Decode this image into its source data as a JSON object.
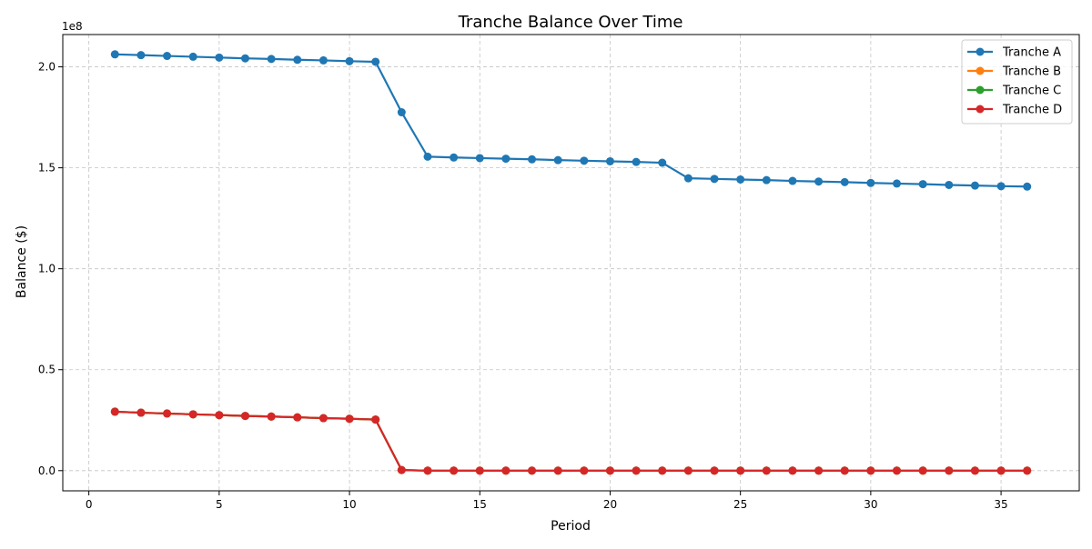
{
  "chart_data": {
    "type": "line",
    "title": "Tranche Balance Over Time",
    "xlabel": "Period",
    "ylabel": "Balance ($)",
    "y_offset_label": "1e8",
    "xlim": [
      -1,
      38
    ],
    "ylim": [
      -10000000,
      216000000
    ],
    "x_ticks": [
      0,
      5,
      10,
      15,
      20,
      25,
      30,
      35
    ],
    "y_ticks": [
      0,
      50000000,
      100000000,
      150000000,
      200000000
    ],
    "y_tick_labels": [
      "0.0",
      "0.5",
      "1.0",
      "1.5",
      "2.0"
    ],
    "grid": true,
    "legend_position": "upper right",
    "x": [
      1,
      2,
      3,
      4,
      5,
      6,
      7,
      8,
      9,
      10,
      11,
      12,
      13,
      14,
      15,
      16,
      17,
      18,
      19,
      20,
      21,
      22,
      23,
      24,
      25,
      26,
      27,
      28,
      29,
      30,
      31,
      32,
      33,
      34,
      35,
      36
    ],
    "series": [
      {
        "name": "Tranche A",
        "color": "#1f77b4",
        "values": [
          206200000,
          205800000,
          205400000,
          205000000,
          204600000,
          204200000,
          203900000,
          203500000,
          203200000,
          202800000,
          202500000,
          177500000,
          155500000,
          155100000,
          154800000,
          154500000,
          154200000,
          153800000,
          153500000,
          153200000,
          152900000,
          152500000,
          144800000,
          144500000,
          144200000,
          143900000,
          143500000,
          143200000,
          142900000,
          142500000,
          142200000,
          141900000,
          141500000,
          141200000,
          140900000,
          140700000
        ]
      },
      {
        "name": "Tranche B",
        "color": "#ff7f0e",
        "values": [
          29200000,
          28700000,
          28300000,
          27900000,
          27500000,
          27100000,
          26800000,
          26400000,
          26000000,
          25700000,
          25300000,
          300000,
          0,
          0,
          0,
          0,
          0,
          0,
          0,
          0,
          0,
          0,
          0,
          0,
          0,
          0,
          0,
          0,
          0,
          0,
          0,
          0,
          0,
          0,
          0,
          0
        ]
      },
      {
        "name": "Tranche C",
        "color": "#2ca02c",
        "values": [
          29200000,
          28700000,
          28300000,
          27900000,
          27500000,
          27100000,
          26800000,
          26400000,
          26000000,
          25700000,
          25300000,
          300000,
          0,
          0,
          0,
          0,
          0,
          0,
          0,
          0,
          0,
          0,
          0,
          0,
          0,
          0,
          0,
          0,
          0,
          0,
          0,
          0,
          0,
          0,
          0,
          0
        ]
      },
      {
        "name": "Tranche D",
        "color": "#d62728",
        "values": [
          29200000,
          28700000,
          28300000,
          27900000,
          27500000,
          27100000,
          26800000,
          26400000,
          26000000,
          25700000,
          25300000,
          300000,
          0,
          0,
          0,
          0,
          0,
          0,
          0,
          0,
          0,
          0,
          0,
          0,
          0,
          0,
          0,
          0,
          0,
          0,
          0,
          0,
          0,
          0,
          0,
          0
        ]
      }
    ]
  }
}
